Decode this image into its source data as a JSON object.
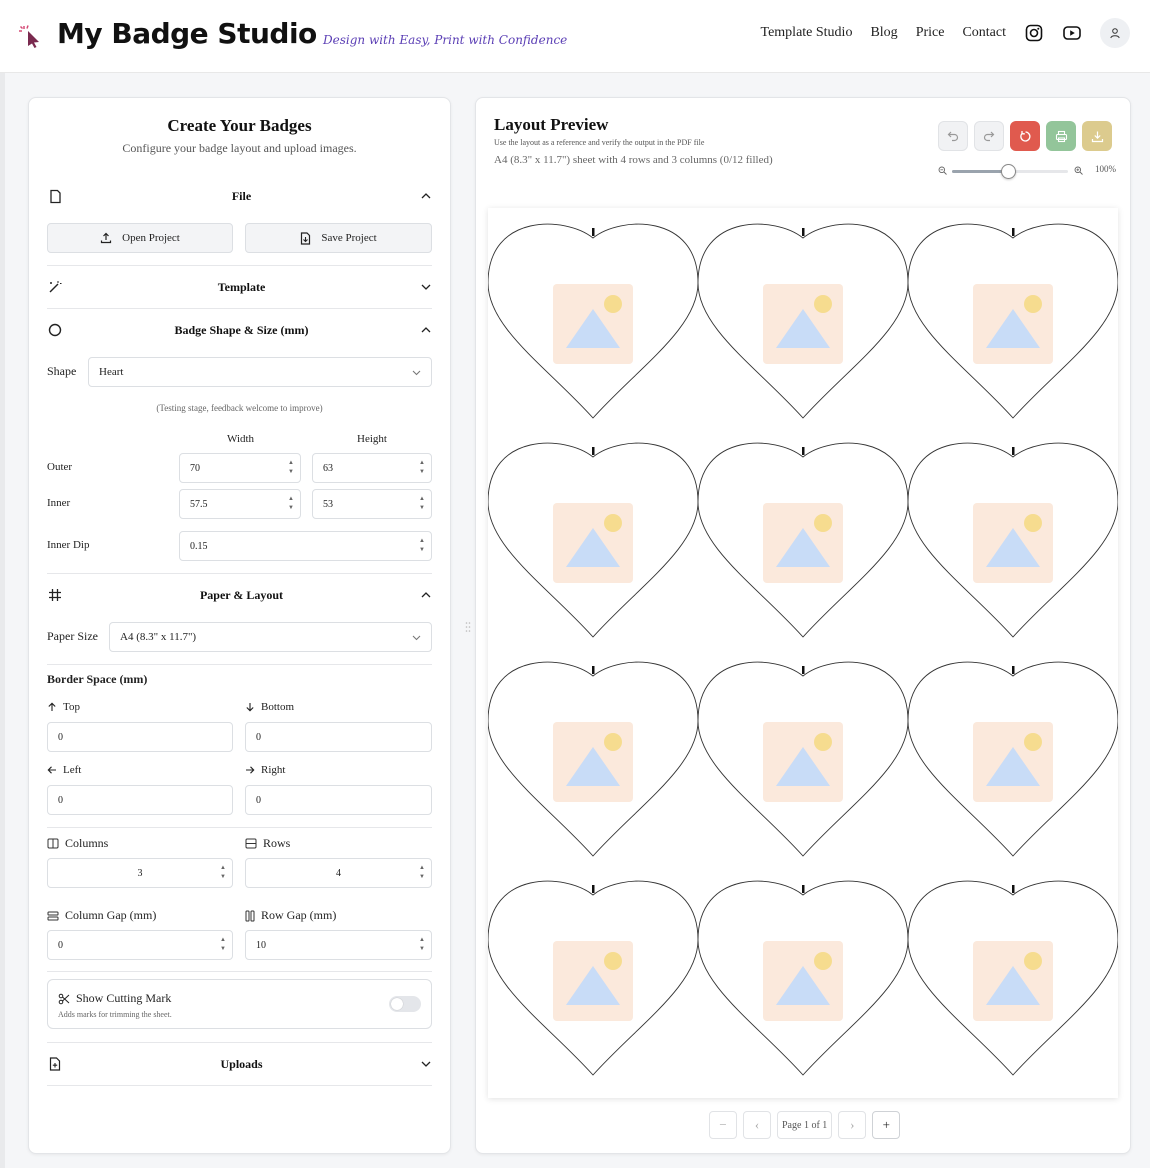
{
  "header": {
    "brand": "My Badge Studio",
    "tagline": "Design with Easy, Print with Confidence",
    "nav": [
      "Template Studio",
      "Blog",
      "Price",
      "Contact"
    ],
    "icons": [
      "instagram-icon",
      "youtube-icon",
      "user-icon"
    ]
  },
  "left": {
    "title": "Create Your Badges",
    "subtitle": "Configure your badge layout and upload images.",
    "file": {
      "title": "File",
      "open_label": "Open Project",
      "save_label": "Save Project"
    },
    "template": {
      "title": "Template"
    },
    "shape_section": {
      "title": "Badge Shape & Size (mm)",
      "shape_label": "Shape",
      "shape_value": "Heart",
      "hint": "(Testing stage, feedback welcome to improve)",
      "col_width": "Width",
      "col_height": "Height",
      "outer_label": "Outer",
      "outer_width": "70",
      "outer_height": "63",
      "inner_label": "Inner",
      "inner_width": "57.5",
      "inner_height": "53",
      "dip_label": "Inner Dip",
      "dip_value": "0.15"
    },
    "paper": {
      "title": "Paper & Layout",
      "size_label": "Paper Size",
      "size_value": "A4 (8.3\" x 11.7\")",
      "border_title": "Border Space (mm)",
      "top_label": "Top",
      "top_value": "0",
      "bottom_label": "Bottom",
      "bottom_value": "0",
      "left_label": "Left",
      "left_value": "0",
      "right_label": "Right",
      "right_value": "0",
      "columns_label": "Columns",
      "columns_value": "3",
      "rows_label": "Rows",
      "rows_value": "4",
      "colgap_label": "Column Gap (mm)",
      "colgap_value": "0",
      "rowgap_label": "Row Gap (mm)",
      "rowgap_value": "10",
      "cutting_title": "Show Cutting Mark",
      "cutting_desc": "Adds marks for trimming the sheet.",
      "cutting_on": false
    },
    "uploads": {
      "title": "Uploads"
    }
  },
  "right": {
    "title": "Layout Preview",
    "note": "Use the layout as a reference and verify the output in the PDF file",
    "sheet_info": "A4 (8.3\" x 11.7\") sheet with 4 rows and 3 columns (0/12 filled)",
    "zoom": "100%",
    "zoom_fraction": 0.48,
    "toolbar_colors": {
      "reset": "#e05a4e",
      "print": "#93c59a",
      "download": "#dccb8e"
    },
    "grid": {
      "rows": 4,
      "columns": 3,
      "filled": 0
    },
    "pager": {
      "text": "Page 1 of 1"
    }
  }
}
